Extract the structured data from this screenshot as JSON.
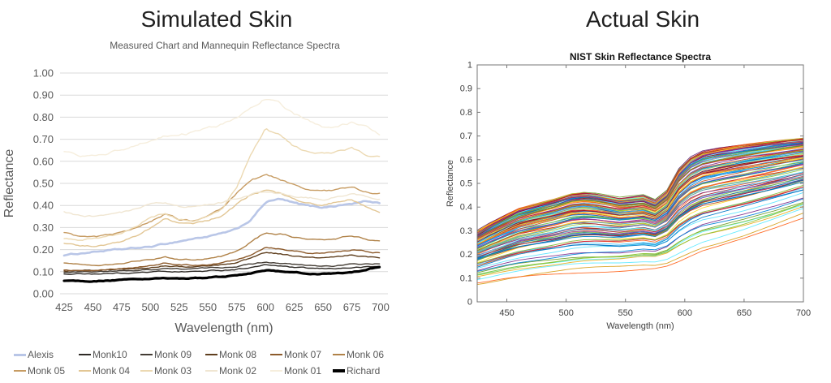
{
  "panels": {
    "left_title": "Simulated Skin",
    "right_title": "Actual Skin"
  },
  "chart_data": [
    {
      "type": "line",
      "title": "Measured Chart and Mannequin Reflectance Spectra",
      "xlabel": "Wavelength (nm)",
      "ylabel": "Reflectance",
      "xlim": [
        425,
        700
      ],
      "ylim": [
        0,
        1
      ],
      "x_tick_labels": [
        "425",
        "450",
        "475",
        "500",
        "525",
        "550",
        "575",
        "600",
        "625",
        "650",
        "675",
        "700"
      ],
      "y_tick_labels": [
        "0.00",
        "0.10",
        "0.20",
        "0.30",
        "0.40",
        "0.50",
        "0.60",
        "0.70",
        "0.80",
        "0.90",
        "1.00"
      ],
      "grid": "horizontal",
      "gridline_color": "#d9d9d9",
      "text_color": "#595959",
      "legend_position": "bottom",
      "legend_rows": [
        [
          "Alexis",
          "Monk10",
          "Monk 09",
          "Monk 08",
          "Monk 07",
          "Monk 06"
        ],
        [
          "Monk 05",
          "Monk 04",
          "Monk 03",
          "Monk 02",
          "Monk 01",
          "Richard"
        ]
      ],
      "x": [
        425,
        437.5,
        450,
        462.5,
        475,
        487.5,
        500,
        512.5,
        525,
        537.5,
        550,
        562.5,
        575,
        587.5,
        600,
        612.5,
        625,
        637.5,
        650,
        662.5,
        675,
        687.5,
        700
      ],
      "series": [
        {
          "name": "Alexis",
          "color": "#b9c6e7",
          "width": 2.6,
          "values": [
            0.175,
            0.182,
            0.19,
            0.196,
            0.2,
            0.206,
            0.212,
            0.225,
            0.238,
            0.25,
            0.26,
            0.272,
            0.29,
            0.335,
            0.415,
            0.428,
            0.408,
            0.396,
            0.392,
            0.4,
            0.408,
            0.418,
            0.412
          ]
        },
        {
          "name": "Monk10",
          "color": "#2e2a26",
          "width": 1.4,
          "values": [
            0.088,
            0.09,
            0.091,
            0.092,
            0.094,
            0.096,
            0.098,
            0.102,
            0.1,
            0.101,
            0.103,
            0.106,
            0.112,
            0.12,
            0.13,
            0.126,
            0.118,
            0.114,
            0.112,
            0.115,
            0.118,
            0.121,
            0.123
          ]
        },
        {
          "name": "Monk 09",
          "color": "#433c34",
          "width": 1.4,
          "values": [
            0.097,
            0.099,
            0.1,
            0.101,
            0.103,
            0.106,
            0.109,
            0.116,
            0.112,
            0.113,
            0.116,
            0.119,
            0.126,
            0.135,
            0.145,
            0.141,
            0.132,
            0.127,
            0.125,
            0.128,
            0.132,
            0.134,
            0.136
          ]
        },
        {
          "name": "Monk 08",
          "color": "#5f3f1e",
          "width": 1.4,
          "values": [
            0.101,
            0.103,
            0.105,
            0.107,
            0.11,
            0.114,
            0.12,
            0.13,
            0.124,
            0.122,
            0.126,
            0.132,
            0.142,
            0.163,
            0.188,
            0.182,
            0.171,
            0.164,
            0.161,
            0.166,
            0.173,
            0.168,
            0.166
          ]
        },
        {
          "name": "Monk 07",
          "color": "#8c5a2b",
          "width": 1.4,
          "values": [
            0.106,
            0.108,
            0.11,
            0.113,
            0.116,
            0.121,
            0.129,
            0.14,
            0.132,
            0.13,
            0.134,
            0.141,
            0.154,
            0.18,
            0.213,
            0.206,
            0.196,
            0.187,
            0.183,
            0.189,
            0.197,
            0.191,
            0.186
          ]
        },
        {
          "name": "Monk 06",
          "color": "#b08248",
          "width": 1.4,
          "values": [
            0.138,
            0.133,
            0.132,
            0.135,
            0.141,
            0.149,
            0.159,
            0.166,
            0.157,
            0.156,
            0.161,
            0.17,
            0.192,
            0.237,
            0.277,
            0.271,
            0.258,
            0.246,
            0.241,
            0.251,
            0.263,
            0.249,
            0.236
          ]
        },
        {
          "name": "Monk 05",
          "color": "#c79c63",
          "width": 1.4,
          "values": [
            0.275,
            0.258,
            0.255,
            0.262,
            0.276,
            0.3,
            0.33,
            0.362,
            0.335,
            0.332,
            0.348,
            0.382,
            0.452,
            0.515,
            0.54,
            0.515,
            0.492,
            0.475,
            0.463,
            0.47,
            0.482,
            0.465,
            0.455
          ]
        },
        {
          "name": "Monk 04",
          "color": "#e2c694",
          "width": 1.4,
          "values": [
            0.227,
            0.216,
            0.215,
            0.221,
            0.236,
            0.262,
            0.3,
            0.347,
            0.318,
            0.316,
            0.332,
            0.355,
            0.405,
            0.447,
            0.466,
            0.452,
            0.432,
            0.412,
            0.402,
            0.416,
            0.43,
            0.4,
            0.371
          ]
        },
        {
          "name": "Monk 03",
          "color": "#ecd9b2",
          "width": 1.4,
          "values": [
            0.252,
            0.246,
            0.25,
            0.26,
            0.272,
            0.3,
            0.347,
            0.362,
            0.337,
            0.332,
            0.352,
            0.385,
            0.48,
            0.63,
            0.745,
            0.715,
            0.665,
            0.643,
            0.632,
            0.64,
            0.662,
            0.632,
            0.617
          ]
        },
        {
          "name": "Monk 02",
          "color": "#f0e6d2",
          "width": 1.4,
          "values": [
            0.37,
            0.356,
            0.351,
            0.356,
            0.366,
            0.381,
            0.401,
            0.406,
            0.392,
            0.392,
            0.402,
            0.412,
            0.43,
            0.451,
            0.462,
            0.455,
            0.442,
            0.432,
            0.43,
            0.44,
            0.451,
            0.44,
            0.434
          ]
        },
        {
          "name": "Monk 01",
          "color": "#f6eedd",
          "width": 1.4,
          "values": [
            0.64,
            0.625,
            0.621,
            0.632,
            0.655,
            0.676,
            0.7,
            0.716,
            0.721,
            0.731,
            0.745,
            0.766,
            0.796,
            0.852,
            0.892,
            0.862,
            0.812,
            0.782,
            0.757,
            0.762,
            0.776,
            0.756,
            0.722
          ]
        },
        {
          "name": "Richard",
          "color": "#000000",
          "width": 3.2,
          "values": [
            0.058,
            0.057,
            0.058,
            0.06,
            0.062,
            0.063,
            0.065,
            0.066,
            0.068,
            0.07,
            0.073,
            0.076,
            0.083,
            0.093,
            0.104,
            0.102,
            0.096,
            0.092,
            0.091,
            0.094,
            0.099,
            0.11,
            0.124
          ]
        }
      ]
    },
    {
      "type": "line",
      "title": "NIST Skin Reflectance Spectra",
      "xlabel": "Wavelength (nm)",
      "ylabel": "Reflectance",
      "xlim": [
        425,
        700
      ],
      "ylim": [
        0,
        1
      ],
      "x_tick_values": [
        450,
        500,
        550,
        600,
        650,
        700
      ],
      "x_tick_labels": [
        "450",
        "500",
        "550",
        "600",
        "650",
        "700"
      ],
      "y_tick_labels": [
        "0",
        "0.1",
        "0.2",
        "0.3",
        "0.4",
        "0.5",
        "0.6",
        "0.7",
        "0.8",
        "0.9",
        "1"
      ],
      "grid": "off",
      "box": true,
      "axis_color": "#777777",
      "text_color": "#404040",
      "n_lines": 120,
      "seed": 42,
      "envelope": {
        "x": [
          425,
          435,
          450,
          460,
          475,
          490,
          505,
          515,
          525,
          535,
          545,
          555,
          565,
          575,
          585,
          595,
          605,
          615,
          630,
          650,
          675,
          700
        ],
        "top": [
          0.29,
          0.32,
          0.36,
          0.385,
          0.405,
          0.425,
          0.45,
          0.455,
          0.45,
          0.44,
          0.43,
          0.435,
          0.44,
          0.42,
          0.46,
          0.55,
          0.6,
          0.625,
          0.64,
          0.655,
          0.67,
          0.685
        ],
        "bottom": [
          0.06,
          0.065,
          0.075,
          0.08,
          0.088,
          0.094,
          0.1,
          0.104,
          0.108,
          0.112,
          0.116,
          0.12,
          0.124,
          0.128,
          0.135,
          0.15,
          0.17,
          0.19,
          0.21,
          0.24,
          0.285,
          0.335
        ]
      },
      "palette": [
        "#0072BD",
        "#D95319",
        "#EDB120",
        "#7E2F8E",
        "#77AC30",
        "#4DBEEE",
        "#A2142F"
      ]
    }
  ]
}
